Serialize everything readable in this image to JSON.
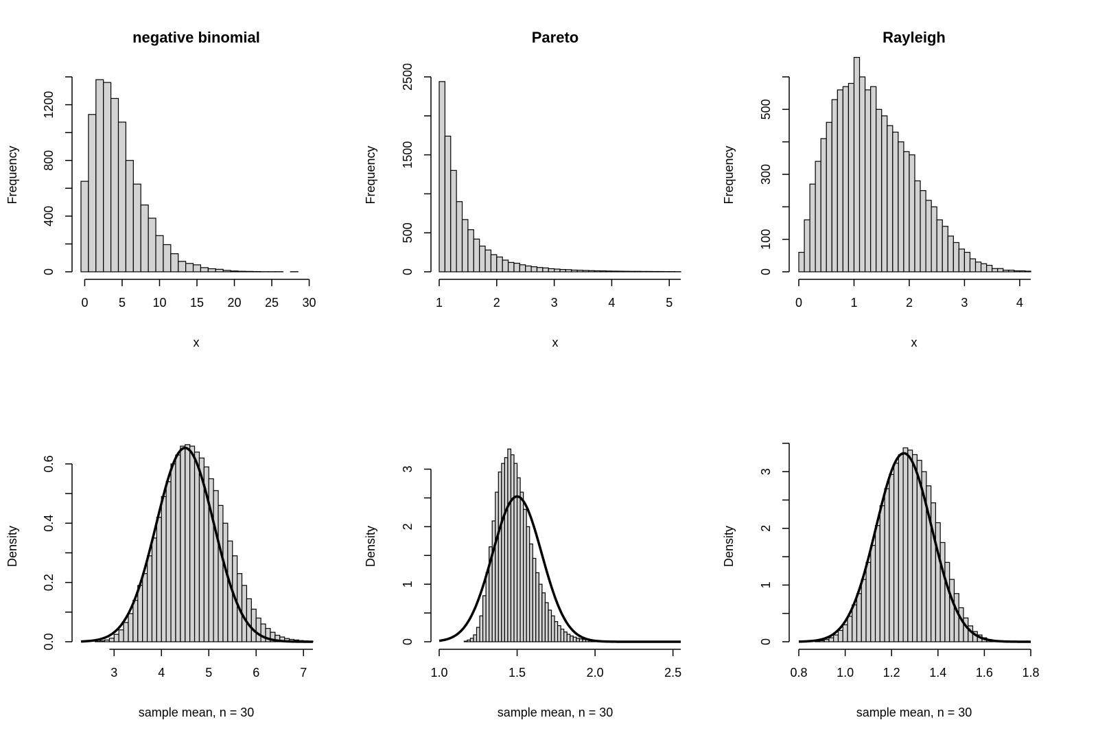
{
  "chart_data": [
    {
      "type": "bar",
      "title": "negative binomial",
      "xlabel": "x",
      "ylabel": "Frequency",
      "xlim": [
        -0.5,
        30.5
      ],
      "ylim": [
        0,
        1400
      ],
      "xticks": [
        0,
        5,
        10,
        15,
        20,
        25,
        30
      ],
      "yticks": [
        0,
        400,
        800,
        1200
      ],
      "ytick_minor": [
        200,
        600,
        1000,
        1400
      ],
      "bin_start": -0.5,
      "bin_width": 1,
      "values": [
        650,
        1130,
        1380,
        1360,
        1245,
        1075,
        800,
        630,
        480,
        385,
        260,
        195,
        130,
        75,
        60,
        50,
        30,
        22,
        18,
        10,
        6,
        4,
        3,
        2,
        1,
        1,
        1,
        0,
        1,
        0,
        0
      ],
      "grid": false
    },
    {
      "type": "bar",
      "title": "Pareto",
      "xlabel": "x",
      "ylabel": "Frequency",
      "xlim": [
        1,
        5.2
      ],
      "ylim": [
        0,
        2500
      ],
      "xticks": [
        1,
        2,
        3,
        4,
        5
      ],
      "yticks": [
        0,
        500,
        1500,
        2500
      ],
      "ytick_minor": [
        1000,
        2000
      ],
      "bin_start": 1.0,
      "bin_width": 0.1,
      "values": [
        2440,
        1740,
        1300,
        900,
        670,
        540,
        420,
        330,
        280,
        220,
        190,
        150,
        120,
        110,
        90,
        75,
        65,
        55,
        50,
        40,
        35,
        30,
        28,
        22,
        20,
        17,
        15,
        13,
        12,
        10,
        9,
        8,
        7,
        6,
        6,
        5,
        5,
        4,
        4,
        3,
        3,
        2
      ],
      "grid": false
    },
    {
      "type": "bar",
      "title": "Rayleigh",
      "xlabel": "x",
      "ylabel": "Frequency",
      "xlim": [
        0,
        4.2
      ],
      "ylim": [
        0,
        600
      ],
      "xticks": [
        0,
        1,
        2,
        3,
        4
      ],
      "yticks": [
        0,
        100,
        300,
        500
      ],
      "ytick_minor": [
        200,
        400,
        600
      ],
      "bin_start": 0,
      "bin_width": 0.1,
      "values": [
        60,
        160,
        270,
        340,
        410,
        460,
        530,
        560,
        570,
        580,
        660,
        600,
        560,
        570,
        500,
        480,
        450,
        430,
        400,
        370,
        360,
        280,
        250,
        220,
        200,
        160,
        140,
        110,
        90,
        70,
        60,
        40,
        30,
        25,
        20,
        10,
        10,
        5,
        5,
        3,
        3,
        2
      ],
      "grid": false
    },
    {
      "type": "bar",
      "title": "",
      "xlabel": "sample mean, n = 30",
      "ylabel": "Density",
      "xlim": [
        2.3,
        7.2
      ],
      "ylim": [
        0,
        0.6
      ],
      "xticks": [
        3,
        4,
        5,
        6,
        7
      ],
      "yticks": [
        0.0,
        0.2,
        0.4,
        0.6
      ],
      "ytick_minor": [
        0.1,
        0.3,
        0.5
      ],
      "bin_start": 2.6,
      "bin_width": 0.1,
      "values": [
        0.001,
        0.003,
        0.006,
        0.012,
        0.025,
        0.04,
        0.065,
        0.095,
        0.14,
        0.19,
        0.23,
        0.29,
        0.35,
        0.42,
        0.49,
        0.54,
        0.6,
        0.63,
        0.66,
        0.665,
        0.66,
        0.64,
        0.62,
        0.59,
        0.55,
        0.51,
        0.46,
        0.4,
        0.34,
        0.29,
        0.23,
        0.19,
        0.145,
        0.11,
        0.08,
        0.06,
        0.045,
        0.032,
        0.022,
        0.016,
        0.011,
        0.008,
        0.006,
        0.004,
        0.003,
        0.002
      ],
      "curve": {
        "mu": 4.5,
        "sigma": 0.61,
        "x_range": [
          2.3,
          7.2
        ]
      },
      "grid": false
    },
    {
      "type": "bar",
      "title": "",
      "xlabel": "sample mean, n = 30",
      "ylabel": "Density",
      "xlim": [
        1.0,
        2.55
      ],
      "ylim": [
        0,
        3.0
      ],
      "xticks": [
        1.0,
        1.5,
        2.0,
        2.5
      ],
      "yticks": [
        0.0,
        1.0,
        2.0,
        3.0
      ],
      "ytick_minor": [
        0.5,
        1.5,
        2.5
      ],
      "bin_start": 1.16,
      "bin_width": 0.02,
      "values": [
        0.01,
        0.03,
        0.06,
        0.12,
        0.25,
        0.45,
        0.8,
        1.2,
        1.65,
        2.1,
        2.6,
        2.95,
        3.1,
        3.2,
        3.35,
        3.25,
        3.1,
        2.85,
        2.6,
        2.3,
        2.0,
        1.7,
        1.45,
        1.2,
        1.0,
        0.85,
        0.68,
        0.55,
        0.45,
        0.35,
        0.28,
        0.22,
        0.17,
        0.13,
        0.1,
        0.08,
        0.06,
        0.05,
        0.04,
        0.035,
        0.03,
        0.025,
        0.02,
        0.02,
        0.015,
        0.015,
        0.012,
        0.01,
        0.01,
        0.008,
        0.008,
        0.006,
        0.006,
        0.005,
        0.005,
        0.004,
        0.004,
        0.003,
        0.003,
        0.003,
        0.002,
        0.002,
        0.002,
        0.002,
        0.002,
        0.001,
        0.001
      ],
      "curve": {
        "mu": 1.5,
        "sigma": 0.158,
        "x_range": [
          1.0,
          2.55
        ]
      },
      "grid": false
    },
    {
      "type": "bar",
      "title": "",
      "xlabel": "sample mean, n = 30",
      "ylabel": "Density",
      "xlim": [
        0.8,
        1.8
      ],
      "ylim": [
        0,
        3.0
      ],
      "xticks": [
        0.8,
        1.0,
        1.2,
        1.4,
        1.6,
        1.8
      ],
      "yticks": [
        0.0,
        1.0,
        2.0,
        3.0
      ],
      "ytick_minor": [
        0.5,
        1.5,
        2.5,
        3.5
      ],
      "bin_start": 0.87,
      "bin_width": 0.02,
      "values": [
        0.01,
        0.02,
        0.04,
        0.07,
        0.12,
        0.2,
        0.3,
        0.45,
        0.65,
        0.85,
        1.1,
        1.4,
        1.7,
        2.05,
        2.4,
        2.7,
        2.95,
        3.15,
        3.3,
        3.42,
        3.38,
        3.3,
        3.2,
        3.0,
        2.75,
        2.45,
        2.1,
        1.75,
        1.4,
        1.1,
        0.85,
        0.6,
        0.42,
        0.28,
        0.18,
        0.12,
        0.07,
        0.04,
        0.02,
        0.01
      ],
      "curve": {
        "mu": 1.253,
        "sigma": 0.12,
        "x_range": [
          0.8,
          1.8
        ]
      },
      "grid": false
    }
  ]
}
